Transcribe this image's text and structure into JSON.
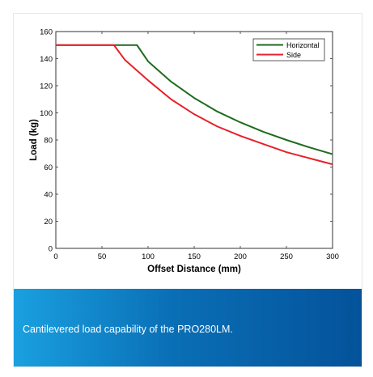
{
  "caption": "Cantilevered load capability of the PRO280LM.",
  "colors": {
    "horizontal": "#1e6b1e",
    "side": "#e8202a",
    "caption_gradient_start": "#1aa0e0",
    "caption_gradient_end": "#04529a"
  },
  "chart_data": {
    "type": "line",
    "title": "",
    "xlabel": "Offset Distance (mm)",
    "ylabel": "Load (kg)",
    "xlim": [
      0,
      300
    ],
    "ylim": [
      0,
      160
    ],
    "xticks": [
      0,
      50,
      100,
      150,
      200,
      250,
      300
    ],
    "yticks": [
      0,
      20,
      40,
      60,
      80,
      100,
      120,
      140,
      160
    ],
    "grid": false,
    "legend_position": "top-right",
    "series": [
      {
        "name": "Horizontal",
        "color": "#1e6b1e",
        "x": [
          0,
          50,
          80,
          88,
          100,
          125,
          150,
          175,
          200,
          225,
          250,
          275,
          300
        ],
        "y": [
          150,
          150,
          150,
          150,
          138,
          123,
          111,
          101,
          93,
          86,
          80,
          74.5,
          69.5
        ]
      },
      {
        "name": "Side",
        "color": "#e8202a",
        "x": [
          0,
          50,
          63,
          75,
          100,
          125,
          150,
          175,
          200,
          225,
          250,
          275,
          300
        ],
        "y": [
          150,
          150,
          150,
          139,
          124,
          110,
          99,
          90,
          83,
          77,
          71,
          66.5,
          62
        ]
      }
    ]
  }
}
